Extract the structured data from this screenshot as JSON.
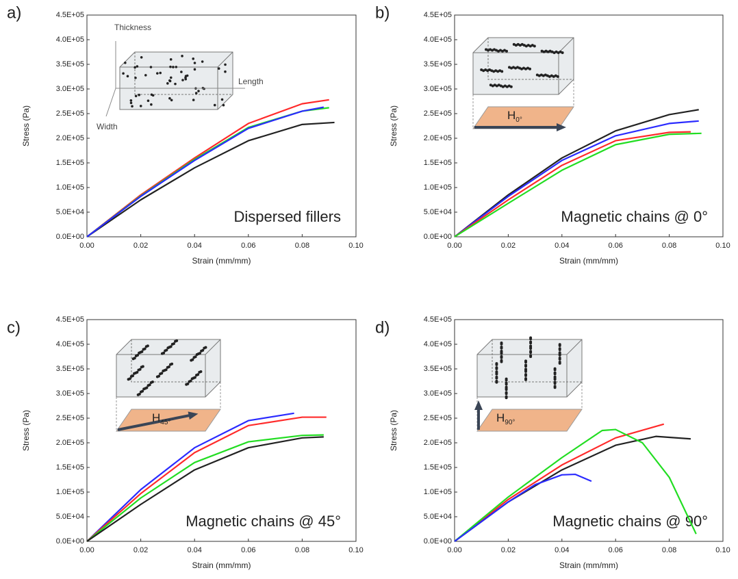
{
  "chart_data": [
    {
      "type": "line",
      "panel_label": "a)",
      "annotation": "Dispersed fillers",
      "inset_labels": [
        "Thickness",
        "Length",
        "Width"
      ],
      "x_label": "Strain (mm/mm)",
      "y_label": "Stress (Pa)",
      "xlim": [
        0,
        0.1
      ],
      "ylim": [
        0,
        450000
      ],
      "xticks": [
        {
          "value": 0,
          "label": "0.00"
        },
        {
          "value": 0.02,
          "label": "0.02"
        },
        {
          "value": 0.04,
          "label": "0.04"
        },
        {
          "value": 0.06,
          "label": "0.06"
        },
        {
          "value": 0.08,
          "label": "0.08"
        },
        {
          "value": 0.1,
          "label": "0.10"
        }
      ],
      "yticks": [
        {
          "value": 0,
          "label": "0.0E+00"
        },
        {
          "value": 50000,
          "label": "5.0E+04"
        },
        {
          "value": 100000,
          "label": "1.0E+05"
        },
        {
          "value": 150000,
          "label": "1.5E+05"
        },
        {
          "value": 200000,
          "label": "2.0E+05"
        },
        {
          "value": 250000,
          "label": "2.5E+05"
        },
        {
          "value": 300000,
          "label": "3.0E+05"
        },
        {
          "value": 350000,
          "label": "3.5E+05"
        },
        {
          "value": 400000,
          "label": "4.0E+05"
        },
        {
          "value": 450000,
          "label": "4.5E+05"
        }
      ],
      "series": [
        {
          "color": "#222222",
          "x": [
            0,
            0.02,
            0.04,
            0.06,
            0.08,
            0.092
          ],
          "values": [
            0,
            75000,
            140000,
            195000,
            228000,
            232000
          ]
        },
        {
          "color": "#ff2a2a",
          "x": [
            0,
            0.02,
            0.04,
            0.06,
            0.08,
            0.09
          ],
          "values": [
            0,
            85000,
            160000,
            230000,
            270000,
            278000
          ]
        },
        {
          "color": "#22dd22",
          "x": [
            0,
            0.02,
            0.04,
            0.06,
            0.08,
            0.09
          ],
          "values": [
            0,
            83000,
            157000,
            222000,
            255000,
            262000
          ]
        },
        {
          "color": "#2a2aff",
          "x": [
            0,
            0.02,
            0.04,
            0.06,
            0.08,
            0.088
          ],
          "values": [
            0,
            82000,
            155000,
            220000,
            255000,
            263000
          ]
        }
      ]
    },
    {
      "type": "line",
      "panel_label": "b)",
      "annotation": "Magnetic chains @ 0°",
      "field_label": {
        "symbol": "H",
        "subscript": "0°"
      },
      "x_label": "Strain (mm/mm)",
      "y_label": "Stress (Pa)",
      "xlim": [
        0,
        0.1
      ],
      "ylim": [
        0,
        450000
      ],
      "xticks": [
        {
          "value": 0,
          "label": "0.00"
        },
        {
          "value": 0.02,
          "label": "0.02"
        },
        {
          "value": 0.04,
          "label": "0.04"
        },
        {
          "value": 0.06,
          "label": "0.06"
        },
        {
          "value": 0.08,
          "label": "0.08"
        },
        {
          "value": 0.1,
          "label": "0.10"
        }
      ],
      "yticks": [
        {
          "value": 0,
          "label": "0.0E+00"
        },
        {
          "value": 50000,
          "label": "5.0E+04"
        },
        {
          "value": 100000,
          "label": "1.0E+05"
        },
        {
          "value": 150000,
          "label": "1.5E+05"
        },
        {
          "value": 200000,
          "label": "2.0E+05"
        },
        {
          "value": 250000,
          "label": "2.5E+05"
        },
        {
          "value": 300000,
          "label": "3.0E+05"
        },
        {
          "value": 350000,
          "label": "3.5E+05"
        },
        {
          "value": 400000,
          "label": "4.0E+05"
        },
        {
          "value": 450000,
          "label": "4.5E+05"
        }
      ],
      "series": [
        {
          "color": "#222222",
          "x": [
            0,
            0.02,
            0.04,
            0.06,
            0.08,
            0.091
          ],
          "values": [
            0,
            85000,
            160000,
            215000,
            248000,
            258000
          ]
        },
        {
          "color": "#2a2aff",
          "x": [
            0,
            0.02,
            0.04,
            0.06,
            0.08,
            0.091
          ],
          "values": [
            0,
            82000,
            155000,
            205000,
            230000,
            235000
          ]
        },
        {
          "color": "#ff2a2a",
          "x": [
            0,
            0.02,
            0.04,
            0.06,
            0.08,
            0.088
          ],
          "values": [
            0,
            75000,
            145000,
            195000,
            212000,
            213000
          ]
        },
        {
          "color": "#22dd22",
          "x": [
            0,
            0.02,
            0.04,
            0.06,
            0.08,
            0.092
          ],
          "values": [
            0,
            68000,
            135000,
            187000,
            208000,
            210000
          ]
        }
      ]
    },
    {
      "type": "line",
      "panel_label": "c)",
      "annotation": "Magnetic chains @ 45°",
      "field_label": {
        "symbol": "H",
        "subscript": "45°"
      },
      "x_label": "Strain (mm/mm)",
      "y_label": "Stress (Pa)",
      "xlim": [
        0,
        0.1
      ],
      "ylim": [
        0,
        450000
      ],
      "xticks": [
        {
          "value": 0,
          "label": "0.00"
        },
        {
          "value": 0.02,
          "label": "0.02"
        },
        {
          "value": 0.04,
          "label": "0.04"
        },
        {
          "value": 0.06,
          "label": "0.06"
        },
        {
          "value": 0.08,
          "label": "0.08"
        },
        {
          "value": 0.1,
          "label": "0.10"
        }
      ],
      "yticks": [
        {
          "value": 0,
          "label": "0.0E+00"
        },
        {
          "value": 50000,
          "label": "5.0E+04"
        },
        {
          "value": 100000,
          "label": "1.0E+05"
        },
        {
          "value": 150000,
          "label": "1.5E+05"
        },
        {
          "value": 200000,
          "label": "2.0E+05"
        },
        {
          "value": 250000,
          "label": "2.5E+05"
        },
        {
          "value": 300000,
          "label": "3.0E+05"
        },
        {
          "value": 350000,
          "label": "3.5E+05"
        },
        {
          "value": 400000,
          "label": "4.0E+05"
        },
        {
          "value": 450000,
          "label": "4.5E+05"
        }
      ],
      "series": [
        {
          "color": "#2a2aff",
          "x": [
            0,
            0.02,
            0.04,
            0.06,
            0.077
          ],
          "values": [
            0,
            105000,
            190000,
            245000,
            260000
          ]
        },
        {
          "color": "#ff2a2a",
          "x": [
            0,
            0.02,
            0.04,
            0.06,
            0.08,
            0.089
          ],
          "values": [
            0,
            97000,
            180000,
            235000,
            252000,
            252000
          ]
        },
        {
          "color": "#22dd22",
          "x": [
            0,
            0.02,
            0.04,
            0.06,
            0.08,
            0.088
          ],
          "values": [
            0,
            88000,
            160000,
            202000,
            215000,
            216000
          ]
        },
        {
          "color": "#222222",
          "x": [
            0,
            0.02,
            0.04,
            0.06,
            0.08,
            0.088
          ],
          "values": [
            0,
            75000,
            145000,
            190000,
            210000,
            212000
          ]
        }
      ]
    },
    {
      "type": "line",
      "panel_label": "d)",
      "annotation": "Magnetic chains @ 90°",
      "field_label": {
        "symbol": "H",
        "subscript": "90°"
      },
      "x_label": "Strain (mm/mm)",
      "y_label": "Stress (Pa)",
      "xlim": [
        0,
        0.1
      ],
      "ylim": [
        0,
        450000
      ],
      "xticks": [
        {
          "value": 0,
          "label": "0.00"
        },
        {
          "value": 0.02,
          "label": "0.02"
        },
        {
          "value": 0.04,
          "label": "0.04"
        },
        {
          "value": 0.06,
          "label": "0.06"
        },
        {
          "value": 0.08,
          "label": "0.08"
        },
        {
          "value": 0.1,
          "label": "0.10"
        }
      ],
      "yticks": [
        {
          "value": 0,
          "label": "0.0E+00"
        },
        {
          "value": 50000,
          "label": "5.0E+04"
        },
        {
          "value": 100000,
          "label": "1.0E+05"
        },
        {
          "value": 150000,
          "label": "1.5E+05"
        },
        {
          "value": 200000,
          "label": "2.0E+05"
        },
        {
          "value": 250000,
          "label": "2.5E+05"
        },
        {
          "value": 300000,
          "label": "3.0E+05"
        },
        {
          "value": 350000,
          "label": "3.5E+05"
        },
        {
          "value": 400000,
          "label": "4.0E+05"
        },
        {
          "value": 450000,
          "label": "4.5E+05"
        }
      ],
      "series": [
        {
          "color": "#ff2a2a",
          "x": [
            0,
            0.02,
            0.04,
            0.06,
            0.078
          ],
          "values": [
            0,
            85000,
            155000,
            210000,
            238000
          ]
        },
        {
          "color": "#222222",
          "x": [
            0,
            0.02,
            0.04,
            0.06,
            0.075,
            0.088
          ],
          "values": [
            0,
            80000,
            145000,
            195000,
            213000,
            208000
          ]
        },
        {
          "color": "#22dd22",
          "x": [
            0,
            0.02,
            0.04,
            0.055,
            0.06,
            0.07,
            0.08,
            0.09
          ],
          "values": [
            0,
            90000,
            170000,
            225000,
            227000,
            200000,
            130000,
            15000
          ]
        },
        {
          "color": "#2a2aff",
          "x": [
            0,
            0.02,
            0.03,
            0.04,
            0.045,
            0.051
          ],
          "values": [
            0,
            80000,
            115000,
            135000,
            136000,
            122000
          ]
        }
      ]
    }
  ]
}
